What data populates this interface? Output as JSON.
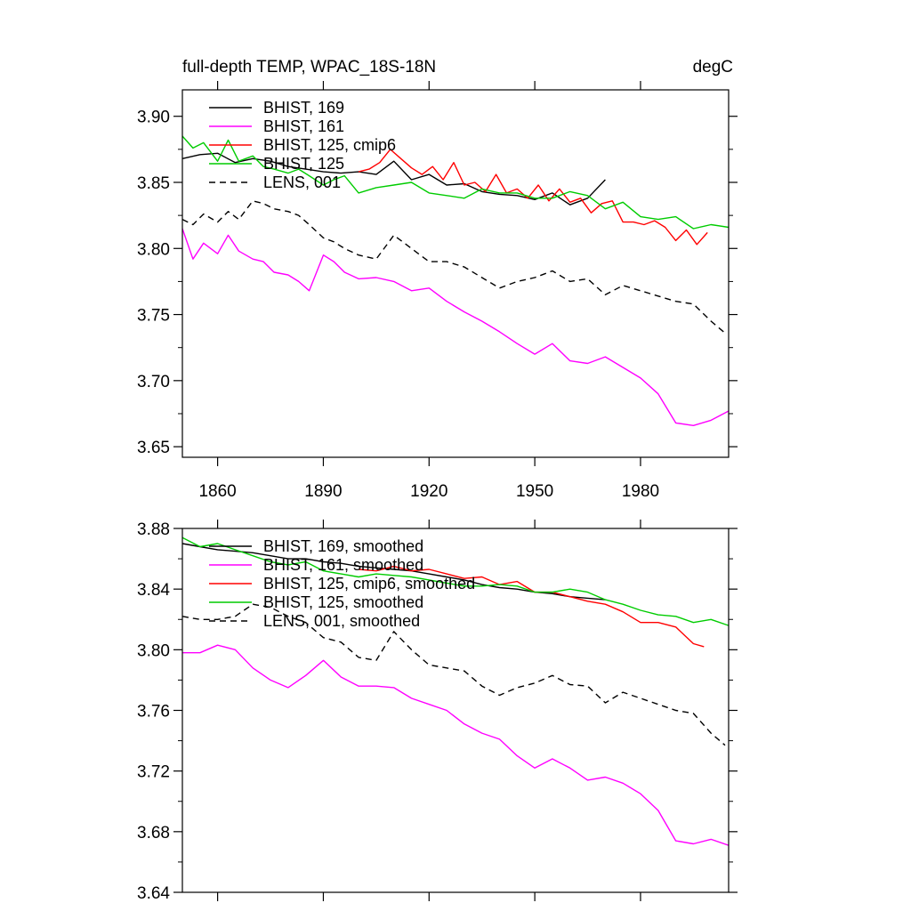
{
  "chart_data": [
    {
      "type": "line",
      "title": "full-depth TEMP, WPAC_18S-18N",
      "units": "degC",
      "xlabel": "",
      "ylabel": "",
      "xlim": [
        1850,
        2005
      ],
      "ylim": [
        3.642,
        3.92
      ],
      "yticks": [
        3.65,
        3.7,
        3.75,
        3.8,
        3.85,
        3.9
      ],
      "ytick_labels": [
        "3.65",
        "3.70",
        "3.75",
        "3.80",
        "3.85",
        "3.90"
      ],
      "xticks": [
        1860,
        1890,
        1920,
        1950,
        1980
      ],
      "xtick_labels": [
        "1860",
        "1890",
        "1920",
        "1950",
        "1980"
      ],
      "legend_position": "top-left",
      "series": [
        {
          "name": "BHIST, 169",
          "color": "#000000",
          "dash": "solid",
          "x": [
            1850,
            1855,
            1860,
            1865,
            1870,
            1875,
            1880,
            1885,
            1890,
            1895,
            1900,
            1905,
            1910,
            1915,
            1920,
            1925,
            1930,
            1935,
            1940,
            1945,
            1950,
            1955,
            1960,
            1965,
            1970
          ],
          "y": [
            3.868,
            3.871,
            3.872,
            3.865,
            3.868,
            3.866,
            3.862,
            3.86,
            3.858,
            3.857,
            3.858,
            3.856,
            3.866,
            3.852,
            3.856,
            3.848,
            3.849,
            3.843,
            3.841,
            3.84,
            3.837,
            3.842,
            3.833,
            3.838,
            3.852
          ]
        },
        {
          "name": "BHIST, 161",
          "color": "#ff00ff",
          "dash": "solid",
          "x": [
            1850,
            1853,
            1856,
            1860,
            1863,
            1866,
            1870,
            1873,
            1876,
            1880,
            1883,
            1886,
            1890,
            1893,
            1896,
            1900,
            1905,
            1910,
            1915,
            1920,
            1925,
            1930,
            1935,
            1940,
            1945,
            1950,
            1955,
            1960,
            1965,
            1970,
            1975,
            1980,
            1985,
            1990,
            1995,
            2000,
            2005
          ],
          "y": [
            3.815,
            3.792,
            3.804,
            3.796,
            3.81,
            3.798,
            3.792,
            3.79,
            3.782,
            3.78,
            3.775,
            3.768,
            3.795,
            3.79,
            3.782,
            3.777,
            3.778,
            3.775,
            3.768,
            3.77,
            3.76,
            3.752,
            3.745,
            3.737,
            3.728,
            3.72,
            3.728,
            3.715,
            3.713,
            3.718,
            3.71,
            3.702,
            3.69,
            3.668,
            3.666,
            3.67,
            3.677
          ]
        },
        {
          "name": "BHIST, 125, cmip6",
          "color": "#ff0000",
          "dash": "solid",
          "x": [
            1900,
            1903,
            1906,
            1909,
            1912,
            1915,
            1918,
            1921,
            1924,
            1927,
            1930,
            1933,
            1936,
            1939,
            1942,
            1945,
            1948,
            1951,
            1954,
            1957,
            1960,
            1963,
            1966,
            1969,
            1972,
            1975,
            1978,
            1981,
            1984,
            1987,
            1990,
            1993,
            1996,
            1999
          ],
          "y": [
            3.858,
            3.86,
            3.865,
            3.875,
            3.868,
            3.861,
            3.856,
            3.862,
            3.852,
            3.865,
            3.848,
            3.85,
            3.843,
            3.856,
            3.842,
            3.845,
            3.838,
            3.848,
            3.836,
            3.845,
            3.835,
            3.838,
            3.827,
            3.834,
            3.836,
            3.82,
            3.82,
            3.818,
            3.821,
            3.816,
            3.806,
            3.814,
            3.803,
            3.812
          ]
        },
        {
          "name": "BHIST, 125",
          "color": "#00cc00",
          "dash": "solid",
          "x": [
            1850,
            1853,
            1856,
            1860,
            1863,
            1866,
            1870,
            1873,
            1876,
            1880,
            1883,
            1886,
            1890,
            1893,
            1896,
            1900,
            1905,
            1910,
            1915,
            1920,
            1925,
            1930,
            1935,
            1940,
            1945,
            1950,
            1955,
            1960,
            1965,
            1970,
            1975,
            1980,
            1985,
            1990,
            1995,
            2000,
            2005
          ],
          "y": [
            3.885,
            3.876,
            3.88,
            3.866,
            3.882,
            3.866,
            3.87,
            3.862,
            3.86,
            3.857,
            3.86,
            3.855,
            3.848,
            3.852,
            3.855,
            3.842,
            3.846,
            3.848,
            3.85,
            3.842,
            3.84,
            3.838,
            3.845,
            3.842,
            3.842,
            3.838,
            3.838,
            3.843,
            3.84,
            3.83,
            3.835,
            3.824,
            3.822,
            3.824,
            3.815,
            3.818,
            3.816
          ]
        },
        {
          "name": "LENS, 001",
          "color": "#000000",
          "dash": "dashed",
          "x": [
            1850,
            1853,
            1856,
            1860,
            1863,
            1866,
            1870,
            1873,
            1876,
            1880,
            1883,
            1886,
            1890,
            1893,
            1896,
            1900,
            1905,
            1910,
            1915,
            1920,
            1925,
            1930,
            1935,
            1940,
            1945,
            1950,
            1955,
            1960,
            1965,
            1970,
            1975,
            1980,
            1985,
            1990,
            1995,
            2000,
            2004
          ],
          "y": [
            3.822,
            3.818,
            3.826,
            3.82,
            3.828,
            3.822,
            3.836,
            3.834,
            3.83,
            3.828,
            3.825,
            3.818,
            3.808,
            3.805,
            3.8,
            3.795,
            3.792,
            3.81,
            3.8,
            3.79,
            3.79,
            3.786,
            3.778,
            3.77,
            3.775,
            3.778,
            3.783,
            3.775,
            3.777,
            3.765,
            3.772,
            3.768,
            3.764,
            3.76,
            3.758,
            3.745,
            3.736
          ]
        }
      ]
    },
    {
      "type": "line",
      "title": "",
      "xlabel": "",
      "ylabel": "",
      "xlim": [
        1850,
        2005
      ],
      "ylim": [
        3.64,
        3.88
      ],
      "yticks": [
        3.64,
        3.68,
        3.72,
        3.76,
        3.8,
        3.84,
        3.88
      ],
      "ytick_labels": [
        "3.64",
        "3.68",
        "3.72",
        "3.76",
        "3.80",
        "3.84",
        "3.88"
      ],
      "xticks": [
        1860,
        1890,
        1920,
        1950,
        1980
      ],
      "legend_position": "top-left",
      "series": [
        {
          "name": "BHIST, 169, smoothed",
          "color": "#000000",
          "dash": "solid",
          "x": [
            1850,
            1855,
            1860,
            1865,
            1870,
            1875,
            1880,
            1885,
            1890,
            1895,
            1900,
            1905,
            1910,
            1915,
            1920,
            1925,
            1930,
            1935,
            1940,
            1945,
            1950,
            1955,
            1960,
            1965,
            1970
          ],
          "y": [
            3.87,
            3.868,
            3.866,
            3.865,
            3.864,
            3.862,
            3.86,
            3.86,
            3.858,
            3.857,
            3.855,
            3.854,
            3.853,
            3.852,
            3.85,
            3.848,
            3.846,
            3.843,
            3.841,
            3.84,
            3.838,
            3.837,
            3.835,
            3.834,
            3.833
          ]
        },
        {
          "name": "BHIST, 161, smoothed",
          "color": "#ff00ff",
          "dash": "solid",
          "x": [
            1850,
            1855,
            1860,
            1865,
            1870,
            1875,
            1880,
            1885,
            1890,
            1895,
            1900,
            1905,
            1910,
            1915,
            1920,
            1925,
            1930,
            1935,
            1940,
            1945,
            1950,
            1955,
            1960,
            1965,
            1970,
            1975,
            1980,
            1985,
            1990,
            1995,
            2000,
            2005
          ],
          "y": [
            3.798,
            3.798,
            3.803,
            3.8,
            3.788,
            3.78,
            3.775,
            3.783,
            3.793,
            3.782,
            3.776,
            3.776,
            3.775,
            3.768,
            3.764,
            3.76,
            3.751,
            3.745,
            3.741,
            3.73,
            3.722,
            3.728,
            3.722,
            3.714,
            3.716,
            3.712,
            3.705,
            3.694,
            3.674,
            3.672,
            3.675,
            3.671
          ]
        },
        {
          "name": "BHIST, 125, cmip6, smoothed",
          "color": "#ff0000",
          "dash": "solid",
          "x": [
            1900,
            1905,
            1910,
            1915,
            1920,
            1925,
            1930,
            1935,
            1940,
            1945,
            1950,
            1955,
            1960,
            1965,
            1970,
            1975,
            1980,
            1985,
            1990,
            1995,
            1998
          ],
          "y": [
            3.853,
            3.852,
            3.855,
            3.852,
            3.853,
            3.85,
            3.847,
            3.848,
            3.843,
            3.845,
            3.838,
            3.838,
            3.835,
            3.832,
            3.83,
            3.825,
            3.818,
            3.818,
            3.815,
            3.804,
            3.802
          ]
        },
        {
          "name": "BHIST, 125, smoothed",
          "color": "#00cc00",
          "dash": "solid",
          "x": [
            1850,
            1855,
            1860,
            1865,
            1870,
            1875,
            1880,
            1885,
            1890,
            1895,
            1900,
            1905,
            1910,
            1915,
            1920,
            1925,
            1930,
            1935,
            1940,
            1945,
            1950,
            1955,
            1960,
            1965,
            1970,
            1975,
            1980,
            1985,
            1990,
            1995,
            2000,
            2005
          ],
          "y": [
            3.874,
            3.868,
            3.87,
            3.866,
            3.862,
            3.858,
            3.856,
            3.858,
            3.852,
            3.85,
            3.848,
            3.85,
            3.849,
            3.848,
            3.846,
            3.844,
            3.842,
            3.842,
            3.843,
            3.842,
            3.838,
            3.838,
            3.84,
            3.838,
            3.833,
            3.83,
            3.826,
            3.823,
            3.822,
            3.818,
            3.82,
            3.816
          ]
        },
        {
          "name": "LENS, 001, smoothed",
          "color": "#000000",
          "dash": "dashed",
          "x": [
            1850,
            1855,
            1860,
            1865,
            1870,
            1875,
            1880,
            1885,
            1890,
            1895,
            1900,
            1905,
            1910,
            1915,
            1920,
            1925,
            1930,
            1935,
            1940,
            1945,
            1950,
            1955,
            1960,
            1965,
            1970,
            1975,
            1980,
            1985,
            1990,
            1995,
            2000,
            2004
          ],
          "y": [
            3.822,
            3.82,
            3.82,
            3.822,
            3.83,
            3.828,
            3.822,
            3.818,
            3.808,
            3.805,
            3.795,
            3.793,
            3.812,
            3.8,
            3.79,
            3.788,
            3.786,
            3.776,
            3.77,
            3.775,
            3.778,
            3.783,
            3.777,
            3.776,
            3.765,
            3.772,
            3.768,
            3.764,
            3.76,
            3.758,
            3.745,
            3.737
          ]
        }
      ]
    }
  ]
}
